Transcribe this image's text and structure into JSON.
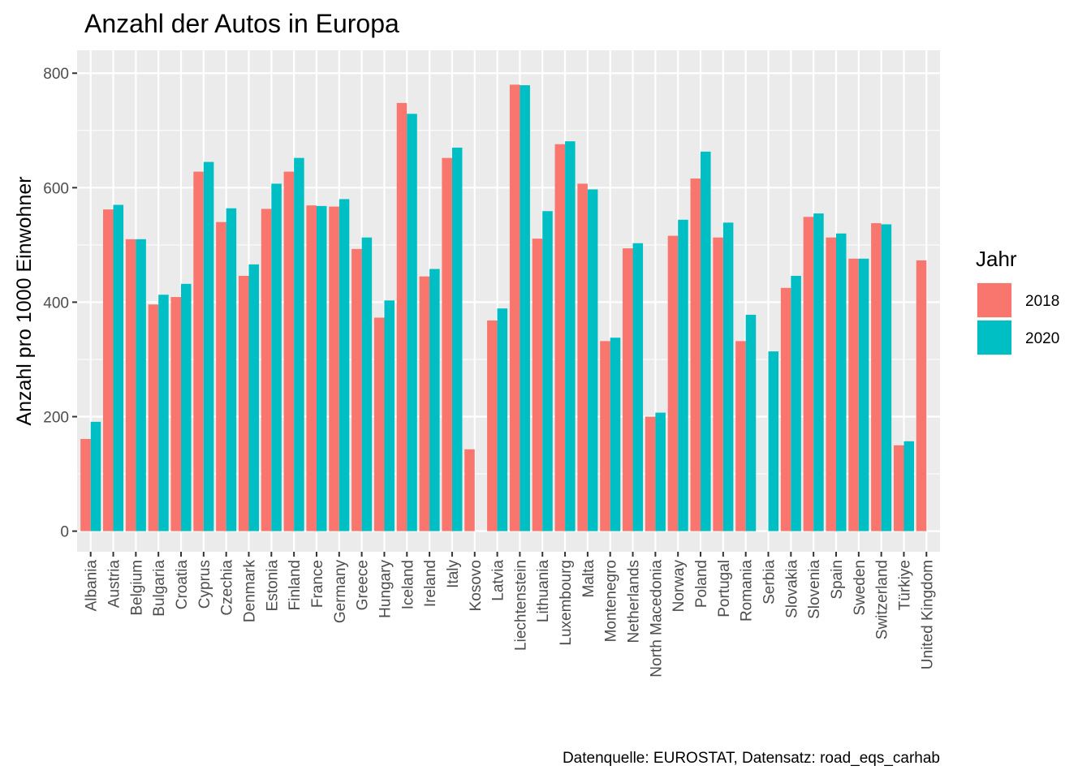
{
  "chart_data": {
    "type": "bar",
    "title": "Anzahl der Autos in Europa",
    "xlabel": "",
    "ylabel": "Anzahl pro 1000 Einwohner",
    "caption": "Datenquelle: EUROSTAT, Datensatz: road_eqs_carhab",
    "ylim": [
      -36,
      840
    ],
    "yticks": [
      0,
      200,
      400,
      600,
      800
    ],
    "grid": true,
    "legend": {
      "title": "Jahr",
      "placement": "right"
    },
    "categories": [
      "Albania",
      "Austria",
      "Belgium",
      "Bulgaria",
      "Croatia",
      "Cyprus",
      "Czechia",
      "Denmark",
      "Estonia",
      "Finland",
      "France",
      "Germany",
      "Greece",
      "Hungary",
      "Iceland",
      "Ireland",
      "Italy",
      "Kosovo",
      "Latvia",
      "Liechtenstein",
      "Lithuania",
      "Luxembourg",
      "Malta",
      "Montenegro",
      "Netherlands",
      "North Macedonia",
      "Norway",
      "Poland",
      "Portugal",
      "Romania",
      "Serbia",
      "Slovakia",
      "Slovenia",
      "Spain",
      "Sweden",
      "Switzerland",
      "Türkiye",
      "United Kingdom"
    ],
    "series": [
      {
        "name": "2018",
        "color": "#F8766D",
        "values": [
          161,
          562,
          510,
          396,
          409,
          628,
          540,
          446,
          563,
          628,
          569,
          567,
          493,
          373,
          748,
          445,
          652,
          143,
          368,
          780,
          511,
          676,
          607,
          332,
          494,
          200,
          516,
          616,
          513,
          332,
          null,
          425,
          549,
          513,
          476,
          538,
          150,
          473
        ]
      },
      {
        "name": "2020",
        "color": "#00BFC4",
        "values": [
          191,
          570,
          510,
          413,
          432,
          645,
          564,
          466,
          607,
          652,
          568,
          580,
          513,
          403,
          729,
          458,
          670,
          null,
          389,
          779,
          559,
          681,
          597,
          338,
          503,
          207,
          544,
          663,
          539,
          378,
          314,
          446,
          555,
          520,
          476,
          536,
          157,
          null
        ]
      }
    ]
  }
}
